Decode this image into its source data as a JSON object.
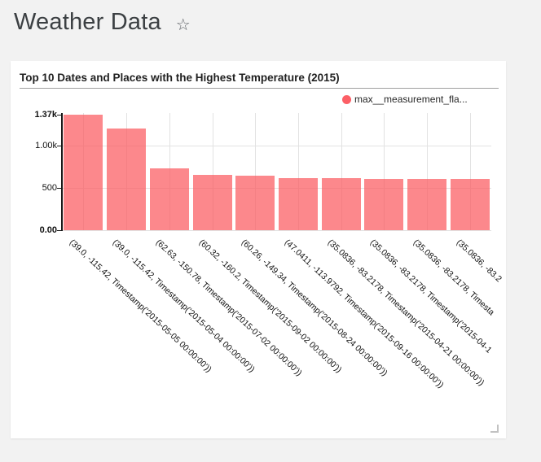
{
  "page": {
    "title": "Weather Data",
    "favorite_icon": "star-outline"
  },
  "card": {
    "title": "Top 10 Dates and Places with the Highest Temperature (2015)",
    "legend": {
      "label": "max__measurement_fla...",
      "color": "#fc5f66"
    }
  },
  "chart_data": {
    "type": "bar",
    "title": "Top 10 Dates and Places with the Highest Temperature (2015)",
    "legend": [
      "max__measurement_fla..."
    ],
    "legend_position": "top-right",
    "grid": true,
    "bar_color": "#fb5a60",
    "bar_opacity": 0.72,
    "xlabel": "",
    "ylabel": "",
    "ylim": [
      0,
      1370
    ],
    "y_ticks": [
      {
        "label": "0.00",
        "value": 0,
        "bold": true
      },
      {
        "label": "500",
        "value": 500,
        "bold": false
      },
      {
        "label": "1.00k",
        "value": 1000,
        "bold": false
      },
      {
        "label": "1.37k",
        "value": 1370,
        "bold": true
      }
    ],
    "categories": [
      "(39.0, -115.42, Timestamp('2015-05-05 00:00:00'))",
      "(39.0, -115.42, Timestamp('2015-05-04 00:00:00'))",
      "(62.63, -150.78, Timestamp('2015-07-02 00:00:00'))",
      "(60.32, -160.2, Timestamp('2015-09-02 00:00:00'))",
      "(60.26, -149.34, Timestamp('2015-08-24 00:00:00'))",
      "(47.0411, -113.9792, Timestamp('2015-09-16 00:00:00'))",
      "(35.0836, -83.2178, Timestamp('2015-04-21 00:00:00'))",
      "(35.0836, -83.2178, Timestamp('2015-04-1",
      "(35.0836, -83.2178, Timesta",
      "(35.0836, -83.2"
    ],
    "values": [
      1370,
      1205,
      735,
      655,
      647,
      617,
      613,
      612,
      611,
      610
    ]
  }
}
